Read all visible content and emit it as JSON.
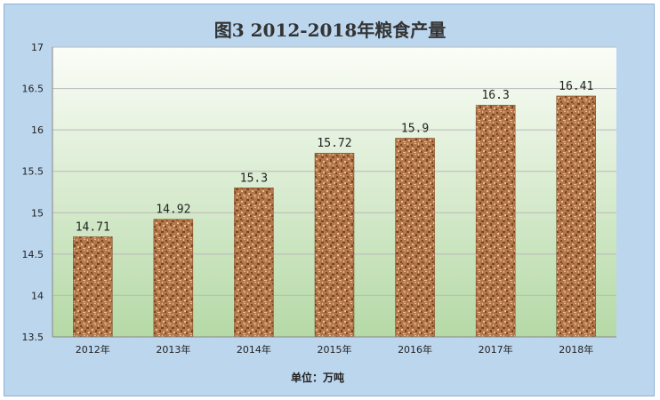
{
  "chart_data": {
    "type": "bar",
    "title": "图3   2012-2018年粮食产量",
    "categories": [
      "2012年",
      "2013年",
      "2014年",
      "2015年",
      "2016年",
      "2017年",
      "2018年"
    ],
    "values": [
      14.71,
      14.92,
      15.3,
      15.72,
      15.9,
      16.3,
      16.41
    ],
    "value_labels": [
      "14.71",
      "14.92",
      "15.3",
      "15.72",
      "15.9",
      "16.3",
      "16.41"
    ],
    "y_ticks": [
      "13.5",
      "14",
      "14.5",
      "15",
      "15.5",
      "16",
      "16.5",
      "17"
    ],
    "ylim": [
      13.5,
      17
    ],
    "grid": true,
    "legend": "none",
    "unit_note": "单位：万吨",
    "colors": {
      "frame_bg": "#bcd6ee",
      "plot_top": "#fbfdf8",
      "plot_bottom": "#b5d9a6",
      "bar_base": "#b3774a",
      "bar_dark": "#7a4523",
      "bar_light": "#e9bd8d",
      "grid": "#b9b9b9",
      "axis": "#888888",
      "title": "#333333",
      "text": "#222222"
    }
  }
}
